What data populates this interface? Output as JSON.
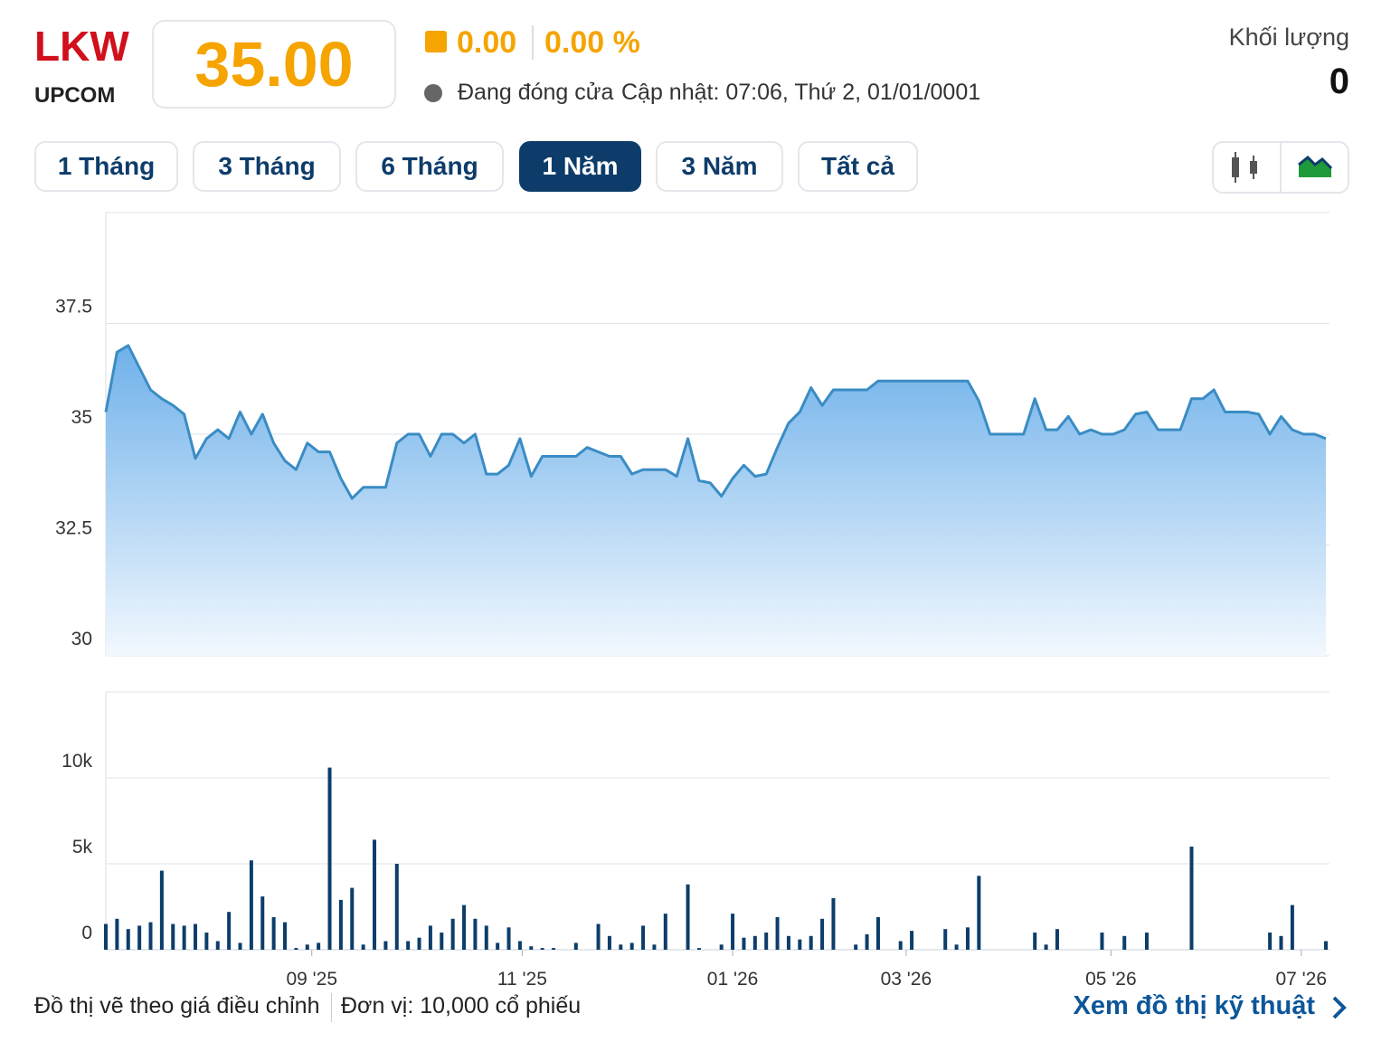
{
  "header": {
    "ticker": "LKW",
    "exchange": "UPCOM",
    "price": "35.00",
    "change": "0.00",
    "change_pct": "0.00 %",
    "status": "Đang đóng cửa",
    "updated": "Cập nhật: 07:06, Thứ 2, 01/01/0001",
    "volume_label": "Khối lượng",
    "volume": "0"
  },
  "ranges": {
    "items": [
      "1 Tháng",
      "3 Tháng",
      "6 Tháng",
      "1 Năm",
      "3 Năm",
      "Tất cả"
    ],
    "active": 3
  },
  "footer": {
    "note": "Đồ thị vẽ theo giá điều chỉnh",
    "unit": "Đơn vị: 10,000 cổ phiếu",
    "link": "Xem đồ thị kỹ thuật"
  },
  "chart_data": [
    {
      "type": "area",
      "color": "#3a8cc4",
      "grid": true,
      "xlim": [
        0,
        109
      ],
      "ylim": [
        30,
        40
      ],
      "yticks": [
        30,
        32.5,
        35,
        37.5
      ],
      "values": [
        35.5,
        36.85,
        37.0,
        36.5,
        36.0,
        35.8,
        35.65,
        35.45,
        34.45,
        34.9,
        35.1,
        34.9,
        35.5,
        35.0,
        35.45,
        34.8,
        34.4,
        34.2,
        34.8,
        34.6,
        34.6,
        34.0,
        33.55,
        33.8,
        33.8,
        33.8,
        34.8,
        35.0,
        35.0,
        34.5,
        35.0,
        35.0,
        34.8,
        35.0,
        34.1,
        34.1,
        34.3,
        34.9,
        34.05,
        34.5,
        34.5,
        34.5,
        34.5,
        34.7,
        34.6,
        34.5,
        34.5,
        34.1,
        34.2,
        34.2,
        34.2,
        34.05,
        34.9,
        33.95,
        33.9,
        33.6,
        34.0,
        34.3,
        34.05,
        34.1,
        34.7,
        35.25,
        35.5,
        36.05,
        35.65,
        36.0,
        36.0,
        36.0,
        36.0,
        36.2,
        36.2,
        36.2,
        36.2,
        36.2,
        36.2,
        36.2,
        36.2,
        36.2,
        35.75,
        35.0,
        35.0,
        35.0,
        35.0,
        35.8,
        35.1,
        35.1,
        35.4,
        35.0,
        35.1,
        35.0,
        35.0,
        35.1,
        35.45,
        35.5,
        35.1,
        35.1,
        35.1,
        35.8,
        35.8,
        36.0,
        35.5,
        35.5,
        35.5,
        35.45,
        35.0,
        35.4,
        35.1,
        35.0,
        35.0,
        34.9
      ]
    },
    {
      "type": "bar",
      "color": "#0c3d6b",
      "grid": true,
      "xlim": [
        0,
        109
      ],
      "ylim": [
        0,
        15000
      ],
      "yticks": [
        0,
        {
          "value": 5000,
          "label": "5k"
        },
        {
          "value": 10000,
          "label": "10k"
        }
      ],
      "xticks": [
        {
          "value": 18.4,
          "label": "09 '25"
        },
        {
          "value": 37.2,
          "label": "11 '25"
        },
        {
          "value": 56,
          "label": "01 '26"
        },
        {
          "value": 71.5,
          "label": "03 '26"
        },
        {
          "value": 89.8,
          "label": "05 '26"
        },
        {
          "value": 106.8,
          "label": "07 '26"
        }
      ],
      "values": [
        1500,
        1800,
        1200,
        1400,
        1600,
        4600,
        1500,
        1400,
        1500,
        1000,
        500,
        2200,
        400,
        5200,
        3100,
        1900,
        1600,
        100,
        300,
        400,
        10600,
        2900,
        3600,
        300,
        6400,
        500,
        5000,
        500,
        700,
        1400,
        1000,
        1800,
        2600,
        1800,
        1400,
        400,
        1300,
        500,
        200,
        100,
        100,
        0,
        400,
        0,
        1500,
        800,
        300,
        400,
        1400,
        300,
        2100,
        0,
        3800,
        100,
        0,
        300,
        2100,
        700,
        800,
        1000,
        1900,
        800,
        600,
        800,
        1800,
        3000,
        0,
        300,
        900,
        1900,
        0,
        500,
        1100,
        0,
        0,
        1200,
        300,
        1300,
        4300,
        0,
        0,
        0,
        0,
        1000,
        300,
        1200,
        0,
        0,
        0,
        1000,
        0,
        800,
        0,
        1000,
        0,
        0,
        0,
        6000,
        0,
        0,
        0,
        0,
        0,
        0,
        1000,
        800,
        2600,
        0,
        0,
        500
      ]
    }
  ]
}
